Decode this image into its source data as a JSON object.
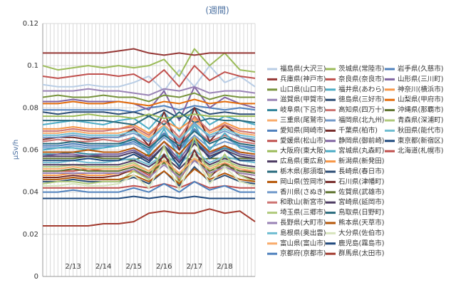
{
  "chart_data": {
    "type": "line",
    "title": "(週間)",
    "y_label": "μSv/h",
    "categories": [
      null,
      null,
      "2/13",
      null,
      "2/14",
      null,
      "2/15",
      null,
      "2/16",
      null,
      "2/17",
      null,
      "2/18",
      null,
      null
    ],
    "ylim": [
      0,
      0.12
    ],
    "yticks": [
      0,
      0.02,
      0.04,
      0.06,
      0.08,
      0.1,
      0.12
    ],
    "grid": true,
    "series": [
      {
        "name": "福島県(大沢三)",
        "color": "#B9CDE5",
        "values": [
          0.091,
          0.09,
          0.09,
          0.091,
          0.09,
          0.09,
          0.092,
          0.095,
          0.088,
          0.098,
          0.09,
          0.1,
          0.092,
          0.095,
          0.09
        ]
      },
      {
        "name": "茨城県(常陸市)",
        "color": "#9BBB59",
        "values": [
          0.1,
          0.098,
          0.099,
          0.1,
          0.099,
          0.1,
          0.099,
          0.1,
          0.103,
          0.095,
          0.108,
          0.1,
          0.106,
          0.098,
          0.097
        ]
      },
      {
        "name": "岩手県(久慈市)",
        "color": "#4F81BD",
        "values": [
          0.079,
          0.079,
          0.079,
          0.079,
          0.079,
          0.079,
          0.078,
          0.08,
          0.081,
          0.079,
          0.081,
          0.08,
          0.079,
          0.08,
          0.079
        ]
      },
      {
        "name": "兵庫県(神戸市)",
        "color": "#953735",
        "values": [
          0.106,
          0.106,
          0.106,
          0.106,
          0.106,
          0.107,
          0.108,
          0.106,
          0.105,
          0.106,
          0.105,
          0.106,
          0.106,
          0.106,
          0.106
        ]
      },
      {
        "name": "奈良県(奈良市)",
        "color": "#C0504D",
        "values": [
          0.095,
          0.094,
          0.095,
          0.096,
          0.096,
          0.095,
          0.096,
          0.092,
          0.098,
          0.09,
          0.1,
          0.093,
          0.097,
          0.095,
          0.094
        ]
      },
      {
        "name": "山形県(三川町)",
        "color": "#8064A2",
        "values": [
          0.083,
          0.083,
          0.084,
          0.083,
          0.083,
          0.083,
          0.082,
          0.079,
          0.088,
          0.074,
          0.09,
          0.08,
          0.085,
          0.082,
          0.08
        ]
      },
      {
        "name": "山口県(山口市)",
        "color": "#77933C",
        "values": [
          0.085,
          0.086,
          0.085,
          0.085,
          0.086,
          0.085,
          0.085,
          0.083,
          0.086,
          0.085,
          0.087,
          0.084,
          0.086,
          0.085,
          0.085
        ]
      },
      {
        "name": "福井県(あわら)",
        "color": "#4BACC6",
        "values": [
          0.072,
          0.073,
          0.074,
          0.073,
          0.072,
          0.074,
          0.075,
          0.07,
          0.078,
          0.069,
          0.08,
          0.072,
          0.076,
          0.074,
          0.072
        ]
      },
      {
        "name": "神奈川(横浜市)",
        "color": "#F79646",
        "values": [
          0.07,
          0.07,
          0.071,
          0.07,
          0.07,
          0.07,
          0.072,
          0.068,
          0.074,
          0.07,
          0.075,
          0.069,
          0.073,
          0.07,
          0.07
        ]
      },
      {
        "name": "滋賀県(甲賀市)",
        "color": "#9983B5",
        "values": [
          0.088,
          0.088,
          0.088,
          0.089,
          0.088,
          0.088,
          0.087,
          0.086,
          0.089,
          0.088,
          0.09,
          0.087,
          0.088,
          0.088,
          0.087
        ]
      },
      {
        "name": "徳島県(三好市)",
        "color": "#2C4D75",
        "values": [
          0.078,
          0.077,
          0.078,
          0.078,
          0.078,
          0.077,
          0.078,
          0.076,
          0.079,
          0.075,
          0.08,
          0.077,
          0.078,
          0.077,
          0.077
        ]
      },
      {
        "name": "山梨県(甲府市)",
        "color": "#E46C0A",
        "values": [
          0.082,
          0.082,
          0.083,
          0.082,
          0.082,
          0.083,
          0.082,
          0.081,
          0.083,
          0.082,
          0.084,
          0.082,
          0.083,
          0.082,
          0.082
        ]
      },
      {
        "name": "岐阜県(下呂市)",
        "color": "#31859C",
        "values": [
          0.058,
          0.058,
          0.059,
          0.058,
          0.058,
          0.058,
          0.06,
          0.055,
          0.062,
          0.056,
          0.064,
          0.058,
          0.061,
          0.058,
          0.057
        ]
      },
      {
        "name": "高知県(四万十)",
        "color": "#CD7371",
        "values": [
          0.064,
          0.065,
          0.064,
          0.064,
          0.065,
          0.064,
          0.066,
          0.062,
          0.068,
          0.063,
          0.07,
          0.064,
          0.067,
          0.064,
          0.063
        ]
      },
      {
        "name": "沖縄県(那覇市)",
        "color": "#5F7530",
        "values": [
          0.056,
          0.056,
          0.056,
          0.057,
          0.056,
          0.056,
          0.055,
          0.058,
          0.054,
          0.057,
          0.055,
          0.056,
          0.056,
          0.056,
          0.056
        ]
      },
      {
        "name": "三重県(尾鷲市)",
        "color": "#F9AB6B",
        "values": [
          0.068,
          0.068,
          0.069,
          0.068,
          0.068,
          0.068,
          0.07,
          0.066,
          0.072,
          0.065,
          0.074,
          0.068,
          0.071,
          0.068,
          0.067
        ]
      },
      {
        "name": "福岡県(北九州)",
        "color": "#729ACA",
        "values": [
          0.061,
          0.061,
          0.062,
          0.061,
          0.061,
          0.062,
          0.063,
          0.059,
          0.066,
          0.06,
          0.067,
          0.061,
          0.064,
          0.062,
          0.06
        ]
      },
      {
        "name": "青森県(深浦町)",
        "color": "#AFC97A",
        "values": [
          0.052,
          0.052,
          0.053,
          0.052,
          0.052,
          0.052,
          0.054,
          0.05,
          0.057,
          0.051,
          0.058,
          0.052,
          0.055,
          0.052,
          0.051
        ]
      },
      {
        "name": "愛知県(岡崎市)",
        "color": "#4F81BD",
        "values": [
          0.062,
          0.062,
          0.063,
          0.062,
          0.062,
          0.062,
          0.064,
          0.06,
          0.068,
          0.06,
          0.07,
          0.063,
          0.066,
          0.062,
          0.061
        ]
      },
      {
        "name": "千葉県(柏市)",
        "color": "#772C2A",
        "values": [
          0.065,
          0.066,
          0.066,
          0.065,
          0.066,
          0.066,
          0.07,
          0.062,
          0.078,
          0.06,
          0.08,
          0.064,
          0.072,
          0.066,
          0.064
        ]
      },
      {
        "name": "秋田県(能代市)",
        "color": "#6FBDD1",
        "values": [
          0.054,
          0.054,
          0.055,
          0.054,
          0.054,
          0.055,
          0.056,
          0.053,
          0.058,
          0.053,
          0.06,
          0.054,
          0.057,
          0.055,
          0.054
        ]
      },
      {
        "name": "愛媛県(松山市)",
        "color": "#C0504D",
        "values": [
          0.05,
          0.05,
          0.05,
          0.051,
          0.05,
          0.05,
          0.052,
          0.048,
          0.055,
          0.049,
          0.056,
          0.05,
          0.053,
          0.05,
          0.05
        ]
      },
      {
        "name": "静岡県(御前崎)",
        "color": "#8064A2",
        "values": [
          0.057,
          0.058,
          0.058,
          0.057,
          0.058,
          0.058,
          0.06,
          0.056,
          0.064,
          0.055,
          0.066,
          0.058,
          0.062,
          0.058,
          0.057
        ]
      },
      {
        "name": "東京都(新宿区)",
        "color": "#1F497D",
        "values": [
          0.055,
          0.055,
          0.055,
          0.056,
          0.055,
          0.055,
          0.058,
          0.054,
          0.062,
          0.052,
          0.065,
          0.056,
          0.06,
          0.055,
          0.055
        ]
      },
      {
        "name": "大阪府(東大阪)",
        "color": "#9BBB59",
        "values": [
          0.076,
          0.076,
          0.076,
          0.077,
          0.076,
          0.076,
          0.075,
          0.077,
          0.075,
          0.076,
          0.077,
          0.076,
          0.076,
          0.076,
          0.076
        ]
      },
      {
        "name": "宮城県(丸森町)",
        "color": "#4BACC6",
        "values": [
          0.06,
          0.061,
          0.061,
          0.06,
          0.061,
          0.062,
          0.066,
          0.058,
          0.07,
          0.056,
          0.072,
          0.06,
          0.068,
          0.061,
          0.059
        ]
      },
      {
        "name": "北海道(札幌市)",
        "color": "#C0504D",
        "values": [
          0.042,
          0.042,
          0.042,
          0.042,
          0.042,
          0.042,
          0.043,
          0.042,
          0.044,
          0.042,
          0.045,
          0.042,
          0.043,
          0.042,
          0.042
        ]
      },
      {
        "name": "広島県(東広島)",
        "color": "#4D3B62",
        "values": [
          0.053,
          0.053,
          0.053,
          0.053,
          0.053,
          0.053,
          0.055,
          0.052,
          0.057,
          0.051,
          0.058,
          0.053,
          0.056,
          0.053,
          0.052
        ]
      },
      {
        "name": "新潟県(新発田)",
        "color": "#F79646",
        "values": [
          0.048,
          0.048,
          0.049,
          0.048,
          0.048,
          0.049,
          0.05,
          0.047,
          0.055,
          0.046,
          0.056,
          0.048,
          0.052,
          0.049,
          0.048
        ]
      },
      {
        "name": "栃木県(那須塩)",
        "color": "#276A7C",
        "values": [
          0.074,
          0.074,
          0.074,
          0.074,
          0.074,
          0.073,
          0.072,
          0.076,
          0.072,
          0.078,
          0.073,
          0.075,
          0.074,
          0.074,
          0.073
        ]
      },
      {
        "name": "長崎県(春日市)",
        "color": "#2C4D75",
        "values": [
          0.045,
          0.045,
          0.046,
          0.045,
          0.045,
          0.045,
          0.047,
          0.044,
          0.05,
          0.043,
          0.052,
          0.045,
          0.048,
          0.045,
          0.044
        ]
      },
      {
        "name": "岡山県(笠岡市)",
        "color": "#B65708",
        "values": [
          0.059,
          0.059,
          0.059,
          0.06,
          0.059,
          0.059,
          0.061,
          0.057,
          0.064,
          0.058,
          0.066,
          0.059,
          0.062,
          0.059,
          0.058
        ]
      },
      {
        "name": "石川県(津幡町)",
        "color": "#772C2A",
        "values": [
          0.047,
          0.047,
          0.048,
          0.047,
          0.047,
          0.048,
          0.051,
          0.046,
          0.058,
          0.045,
          0.06,
          0.047,
          0.054,
          0.048,
          0.046
        ]
      },
      {
        "name": "香川県(さぬき)",
        "color": "#729ACA",
        "values": [
          0.066,
          0.066,
          0.067,
          0.066,
          0.066,
          0.066,
          0.068,
          0.064,
          0.071,
          0.064,
          0.073,
          0.066,
          0.069,
          0.066,
          0.065
        ]
      },
      {
        "name": "佐賀県(武雄市)",
        "color": "#5F7530",
        "values": [
          0.05,
          0.05,
          0.051,
          0.05,
          0.05,
          0.05,
          0.052,
          0.049,
          0.054,
          0.048,
          0.055,
          0.05,
          0.053,
          0.05,
          0.049
        ]
      },
      {
        "name": "和歌山(新宮市)",
        "color": "#CD7371",
        "values": [
          0.069,
          0.069,
          0.07,
          0.069,
          0.069,
          0.07,
          0.071,
          0.067,
          0.074,
          0.066,
          0.076,
          0.069,
          0.072,
          0.069,
          0.068
        ]
      },
      {
        "name": "宮崎県(延岡市)",
        "color": "#4D3B62",
        "values": [
          0.057,
          0.057,
          0.057,
          0.057,
          0.057,
          0.057,
          0.059,
          0.055,
          0.062,
          0.054,
          0.063,
          0.057,
          0.06,
          0.057,
          0.056
        ]
      },
      {
        "name": "埼玉県(三郷市)",
        "color": "#AFC97A",
        "values": [
          0.044,
          0.045,
          0.045,
          0.044,
          0.045,
          0.045,
          0.05,
          0.046,
          0.062,
          0.044,
          0.066,
          0.047,
          0.058,
          0.048,
          0.045
        ]
      },
      {
        "name": "鳥取県(日野町)",
        "color": "#276A7C",
        "values": [
          0.063,
          0.063,
          0.064,
          0.063,
          0.063,
          0.063,
          0.065,
          0.061,
          0.067,
          0.062,
          0.069,
          0.063,
          0.066,
          0.063,
          0.062
        ]
      },
      {
        "name": "長野県(大町市)",
        "color": "#9983B5",
        "values": [
          0.049,
          0.049,
          0.049,
          0.049,
          0.049,
          0.049,
          0.051,
          0.047,
          0.053,
          0.047,
          0.055,
          0.049,
          0.052,
          0.049,
          0.048
        ]
      },
      {
        "name": "熊本県(天草市)",
        "color": "#B65708",
        "values": [
          0.046,
          0.046,
          0.047,
          0.046,
          0.046,
          0.046,
          0.048,
          0.045,
          0.05,
          0.044,
          0.051,
          0.046,
          0.049,
          0.046,
          0.045
        ]
      },
      {
        "name": "島根県(奥出雲)",
        "color": "#6FBDD1",
        "values": [
          0.067,
          0.067,
          0.068,
          0.067,
          0.067,
          0.067,
          0.069,
          0.065,
          0.071,
          0.065,
          0.072,
          0.067,
          0.07,
          0.067,
          0.066
        ]
      },
      {
        "name": "大分県(佐伯市)",
        "color": "#D7E4BD",
        "values": [
          0.043,
          0.043,
          0.044,
          0.043,
          0.043,
          0.044,
          0.048,
          0.042,
          0.056,
          0.041,
          0.058,
          0.044,
          0.052,
          0.045,
          0.043
        ]
      },
      {
        "name": "富山県(富山市)",
        "color": "#F9AB6B",
        "values": [
          0.051,
          0.051,
          0.052,
          0.051,
          0.051,
          0.051,
          0.053,
          0.05,
          0.055,
          0.049,
          0.056,
          0.051,
          0.054,
          0.051,
          0.05
        ]
      },
      {
        "name": "鹿児島(霧島市)",
        "color": "#1F497D",
        "values": [
          0.037,
          0.037,
          0.037,
          0.037,
          0.037,
          0.037,
          0.038,
          0.037,
          0.038,
          0.037,
          0.038,
          0.037,
          0.037,
          0.037,
          0.037
        ]
      },
      {
        "name": "京都府(京都市)",
        "color": "#4F81BD",
        "values": [
          0.04,
          0.04,
          0.041,
          0.04,
          0.04,
          0.04,
          0.042,
          0.04,
          0.044,
          0.04,
          0.045,
          0.041,
          0.043,
          0.04,
          0.04
        ]
      },
      {
        "name": "群馬県(太田市)",
        "color": "#A33B2F",
        "values": [
          0.024,
          0.024,
          0.024,
          0.024,
          0.025,
          0.025,
          0.026,
          0.03,
          0.031,
          0.03,
          0.03,
          0.032,
          0.03,
          0.031,
          0.026
        ]
      }
    ]
  }
}
